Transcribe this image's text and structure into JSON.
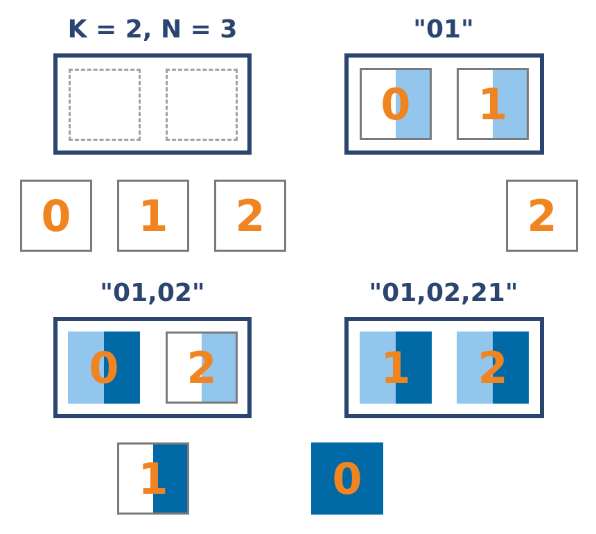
{
  "colors": {
    "navy": "#2b4570",
    "orange": "#f08421",
    "gray": "#7a7a7a",
    "dashed_gray": "#a0a0a0",
    "light_blue": "#92c6ec",
    "dark_blue": "#016aa6"
  },
  "panels": [
    {
      "title": "K = 2, N = 3",
      "slots": [
        "empty",
        "empty"
      ],
      "pool": [
        "0",
        "1",
        "2"
      ]
    },
    {
      "title": "\"01\"",
      "slots": [
        "0",
        "1"
      ],
      "pool": [
        "2"
      ]
    },
    {
      "title": "\"01,02\"",
      "slots": [
        "0",
        "2"
      ],
      "pool": [
        "1"
      ]
    },
    {
      "title": "\"01,02,21\"",
      "slots": [
        "1",
        "2"
      ],
      "pool": [
        "0"
      ]
    }
  ]
}
